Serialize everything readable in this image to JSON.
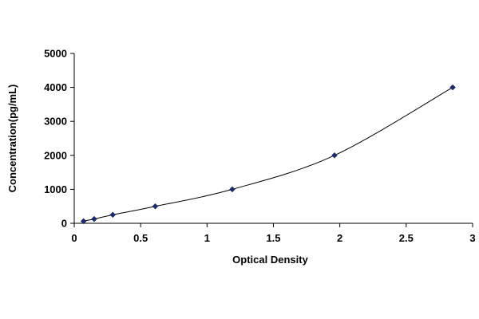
{
  "chart_data": {
    "type": "scatter",
    "title": "",
    "xlabel": "Optical Density",
    "ylabel": "Concentration(pg/mL)",
    "xlim": [
      0,
      3
    ],
    "ylim": [
      0,
      5000
    ],
    "x_ticks": [
      0,
      0.5,
      1,
      1.5,
      2,
      2.5,
      3
    ],
    "x_tick_labels": [
      "0",
      "0.5",
      "1",
      "1.5",
      "2",
      "2.5",
      "3"
    ],
    "y_ticks": [
      0,
      1000,
      2000,
      3000,
      4000,
      5000
    ],
    "y_tick_labels": [
      "0",
      "1000",
      "2000",
      "3000",
      "4000",
      "5000"
    ],
    "grid": false,
    "legend": "none",
    "trendline": "smooth",
    "series": [
      {
        "color": "#1f2a6b",
        "marker": "diamond",
        "points": [
          {
            "x": 0.07,
            "y": 62.5
          },
          {
            "x": 0.15,
            "y": 125
          },
          {
            "x": 0.29,
            "y": 250
          },
          {
            "x": 0.61,
            "y": 500
          },
          {
            "x": 1.19,
            "y": 1000
          },
          {
            "x": 1.96,
            "y": 2000
          },
          {
            "x": 2.85,
            "y": 4000
          }
        ]
      }
    ]
  }
}
